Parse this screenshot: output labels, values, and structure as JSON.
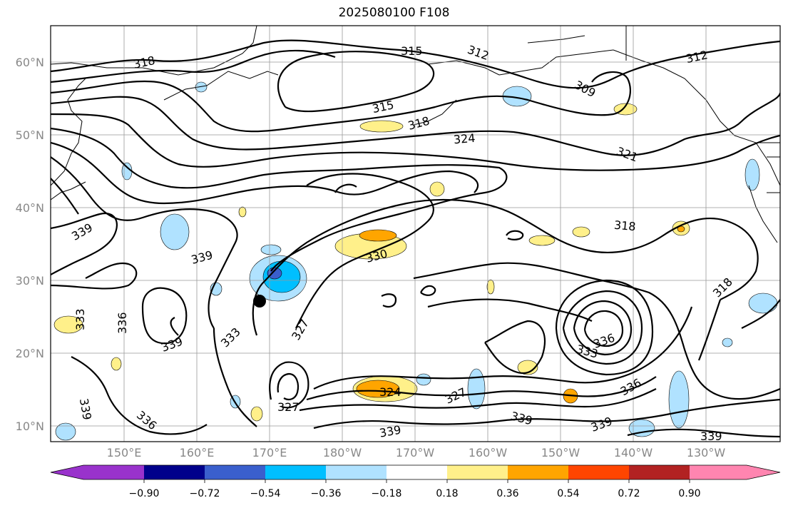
{
  "title": "2025080100 F108",
  "map": {
    "lat_labels": [
      "60°N",
      "50°N",
      "40°N",
      "30°N",
      "20°N",
      "10°N"
    ],
    "lon_labels": [
      "150°E",
      "160°E",
      "170°E",
      "180°W",
      "170°W",
      "160°W",
      "150°W",
      "140°W",
      "130°W"
    ]
  },
  "colorbar": {
    "ticks": [
      "−0.90",
      "−0.72",
      "−0.54",
      "−0.36",
      "−0.18",
      "0.18",
      "0.36",
      "0.54",
      "0.72",
      "0.90"
    ],
    "colors": [
      "#9932cc",
      "#00008b",
      "#3a5fcd",
      "#00bfff",
      "#b0e2ff",
      "#ffffff",
      "#fff08a",
      "#ffa500",
      "#ff4500",
      "#b22222",
      "#ff85b0"
    ]
  },
  "contour_labels": [
    "318",
    "315",
    "312",
    "312",
    "309",
    "315",
    "318",
    "324",
    "321",
    "318",
    "318",
    "339",
    "339",
    "330",
    "333",
    "327",
    "339",
    "333",
    "336",
    "336",
    "333",
    "339",
    "327",
    "324",
    "327",
    "339",
    "339",
    "336",
    "339",
    "336",
    "339"
  ],
  "marker": {
    "name": "storm-center-marker"
  }
}
